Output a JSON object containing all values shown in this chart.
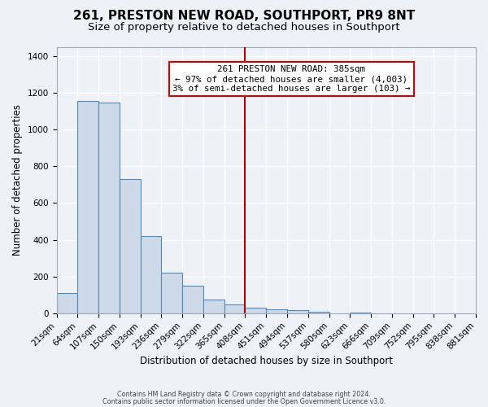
{
  "title": "261, PRESTON NEW ROAD, SOUTHPORT, PR9 8NT",
  "subtitle": "Size of property relative to detached houses in Southport",
  "xlabel": "Distribution of detached houses by size in Southport",
  "ylabel": "Number of detached properties",
  "bin_labels": [
    "21sqm",
    "64sqm",
    "107sqm",
    "150sqm",
    "193sqm",
    "236sqm",
    "279sqm",
    "322sqm",
    "365sqm",
    "408sqm",
    "451sqm",
    "494sqm",
    "537sqm",
    "580sqm",
    "623sqm",
    "666sqm",
    "709sqm",
    "752sqm",
    "795sqm",
    "838sqm",
    "881sqm"
  ],
  "bar_values": [
    110,
    1155,
    1145,
    730,
    420,
    220,
    150,
    75,
    50,
    30,
    20,
    15,
    10,
    0,
    5,
    0,
    0,
    0,
    0,
    0
  ],
  "bar_color": "#ccd9e8",
  "bar_edge_color": "#5588bb",
  "marker_bin_index": 8,
  "marker_label": "261 PRESTON NEW ROAD: 385sqm",
  "annotation_line1": "← 97% of detached houses are smaller (4,003)",
  "annotation_line2": "3% of semi-detached houses are larger (103) →",
  "annotation_box_color": "#ffffff",
  "annotation_border_color": "#cc0000",
  "vline_color": "#aa0000",
  "ylim": [
    0,
    1450
  ],
  "yticks": [
    0,
    200,
    400,
    600,
    800,
    1000,
    1200,
    1400
  ],
  "footer1": "Contains HM Land Registry data © Crown copyright and database right 2024.",
  "footer2": "Contains public sector information licensed under the Open Government Licence v3.0.",
  "background_color": "#eef2f7",
  "grid_color": "#ffffff",
  "title_fontsize": 11,
  "subtitle_fontsize": 9.5,
  "axis_label_fontsize": 8.5,
  "tick_fontsize": 7.5,
  "footer_fontsize": 5.8
}
